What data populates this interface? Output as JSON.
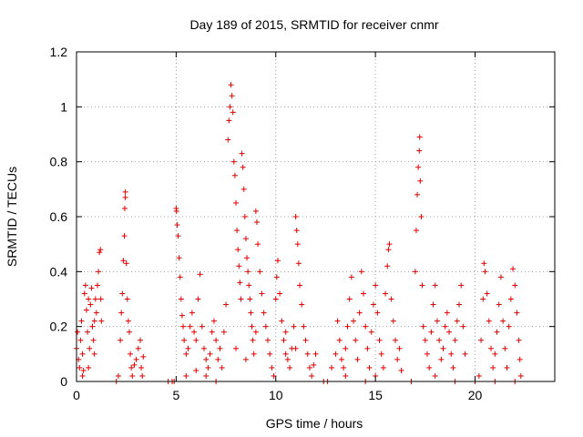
{
  "chart_data": {
    "type": "scatter",
    "title": "Day 189 of 2015, SRMTID for receiver cnmr",
    "xlabel": "GPS time / hours",
    "ylabel": "SRMTID / TECUs",
    "xlim": [
      0,
      24
    ],
    "ylim": [
      0,
      1.2
    ],
    "x_ticks": [
      0,
      5,
      10,
      15,
      20
    ],
    "x_tick_labels": [
      "0",
      "5",
      "10",
      "15",
      "20"
    ],
    "y_ticks": [
      0,
      0.2,
      0.4,
      0.6,
      0.8,
      1.0,
      1.2
    ],
    "y_tick_labels": [
      "0",
      "0.2",
      "0.4",
      "0.6",
      "0.8",
      "1",
      "1.2"
    ],
    "grid": true,
    "marker": "+",
    "color": "#e00000",
    "series": [
      {
        "name": "cnmr",
        "points": [
          [
            0.0,
            0.12
          ],
          [
            0.05,
            0.18
          ],
          [
            0.1,
            0.08
          ],
          [
            0.15,
            0.05
          ],
          [
            0.2,
            0.15
          ],
          [
            0.25,
            0.22
          ],
          [
            0.3,
            0.1
          ],
          [
            0.35,
            0.04
          ],
          [
            0.4,
            0.32
          ],
          [
            0.45,
            0.35
          ],
          [
            0.5,
            0.26
          ],
          [
            0.55,
            0.18
          ],
          [
            0.6,
            0.05
          ],
          [
            0.65,
            0.12
          ],
          [
            0.7,
            0.28
          ],
          [
            0.75,
            0.34
          ],
          [
            0.8,
            0.2
          ],
          [
            0.85,
            0.15
          ],
          [
            0.9,
            0.22
          ],
          [
            0.95,
            0.3
          ],
          [
            1.0,
            0.25
          ],
          [
            1.05,
            0.35
          ],
          [
            1.1,
            0.4
          ],
          [
            1.15,
            0.47
          ],
          [
            1.2,
            0.48
          ],
          [
            1.22,
            0.3
          ],
          [
            1.25,
            0.22
          ],
          [
            0.3,
            0.02
          ],
          [
            0.6,
            0.3
          ],
          [
            0.9,
            0.1
          ],
          [
            2.0,
            0.0
          ],
          [
            2.1,
            0.02
          ],
          [
            2.2,
            0.15
          ],
          [
            2.25,
            0.25
          ],
          [
            2.3,
            0.32
          ],
          [
            2.35,
            0.44
          ],
          [
            2.4,
            0.53
          ],
          [
            2.42,
            0.63
          ],
          [
            2.45,
            0.67
          ],
          [
            2.45,
            0.69
          ],
          [
            2.5,
            0.43
          ],
          [
            2.55,
            0.3
          ],
          [
            2.6,
            0.22
          ],
          [
            2.65,
            0.18
          ],
          [
            2.7,
            0.1
          ],
          [
            2.75,
            0.05
          ],
          [
            2.8,
            0.02
          ],
          [
            2.9,
            0.06
          ],
          [
            3.0,
            0.08
          ],
          [
            3.1,
            0.12
          ],
          [
            3.2,
            0.15
          ],
          [
            3.25,
            0.05
          ],
          [
            3.3,
            0.02
          ],
          [
            3.35,
            0.09
          ],
          [
            4.6,
            0.0
          ],
          [
            4.8,
            0.0
          ],
          [
            4.9,
            0.0
          ],
          [
            5.0,
            0.63
          ],
          [
            5.02,
            0.62
          ],
          [
            5.05,
            0.57
          ],
          [
            5.1,
            0.53
          ],
          [
            5.15,
            0.45
          ],
          [
            5.2,
            0.38
          ],
          [
            5.25,
            0.3
          ],
          [
            5.3,
            0.24
          ],
          [
            5.35,
            0.2
          ],
          [
            5.4,
            0.15
          ],
          [
            5.5,
            0.1
          ],
          [
            5.6,
            0.12
          ],
          [
            5.7,
            0.2
          ],
          [
            5.8,
            0.25
          ],
          [
            5.9,
            0.18
          ],
          [
            6.0,
            0.15
          ],
          [
            6.1,
            0.3
          ],
          [
            6.2,
            0.39
          ],
          [
            6.3,
            0.2
          ],
          [
            6.4,
            0.12
          ],
          [
            6.5,
            0.08
          ],
          [
            6.6,
            0.05
          ],
          [
            6.7,
            0.1
          ],
          [
            6.8,
            0.18
          ],
          [
            6.9,
            0.22
          ],
          [
            7.0,
            0.15
          ],
          [
            7.1,
            0.08
          ],
          [
            7.2,
            0.12
          ],
          [
            7.3,
            0.05
          ],
          [
            7.4,
            0.18
          ],
          [
            7.5,
            0.28
          ],
          [
            5.5,
            0.02
          ],
          [
            6.0,
            0.04
          ],
          [
            6.5,
            0.02
          ],
          [
            7.0,
            0.0
          ],
          [
            7.6,
            0.88
          ],
          [
            7.65,
            0.95
          ],
          [
            7.7,
            1.0
          ],
          [
            7.75,
            1.08
          ],
          [
            7.8,
            1.04
          ],
          [
            7.85,
            0.98
          ],
          [
            7.9,
            0.8
          ],
          [
            7.95,
            0.75
          ],
          [
            8.0,
            0.65
          ],
          [
            8.05,
            0.55
          ],
          [
            8.1,
            0.48
          ],
          [
            8.15,
            0.42
          ],
          [
            8.2,
            0.36
          ],
          [
            8.25,
            0.3
          ],
          [
            8.3,
            0.83
          ],
          [
            8.35,
            0.78
          ],
          [
            8.4,
            0.7
          ],
          [
            8.45,
            0.6
          ],
          [
            8.5,
            0.52
          ],
          [
            8.55,
            0.45
          ],
          [
            8.6,
            0.4
          ],
          [
            8.65,
            0.35
          ],
          [
            8.7,
            0.3
          ],
          [
            8.75,
            0.25
          ],
          [
            8.8,
            0.2
          ],
          [
            8.85,
            0.15
          ],
          [
            8.9,
            0.1
          ],
          [
            9.0,
            0.62
          ],
          [
            9.05,
            0.58
          ],
          [
            9.1,
            0.5
          ],
          [
            9.2,
            0.4
          ],
          [
            9.3,
            0.32
          ],
          [
            9.4,
            0.25
          ],
          [
            9.5,
            0.2
          ],
          [
            9.6,
            0.15
          ],
          [
            9.7,
            0.1
          ],
          [
            9.8,
            0.05
          ],
          [
            9.9,
            0.02
          ],
          [
            8.0,
            0.12
          ],
          [
            8.5,
            0.08
          ],
          [
            9.0,
            0.18
          ],
          [
            10.0,
            0.3
          ],
          [
            10.05,
            0.38
          ],
          [
            10.1,
            0.44
          ],
          [
            10.2,
            0.32
          ],
          [
            10.3,
            0.22
          ],
          [
            10.4,
            0.15
          ],
          [
            10.5,
            0.1
          ],
          [
            10.6,
            0.08
          ],
          [
            10.7,
            0.05
          ],
          [
            10.8,
            0.12
          ],
          [
            10.9,
            0.2
          ],
          [
            11.0,
            0.6
          ],
          [
            11.05,
            0.55
          ],
          [
            11.1,
            0.5
          ],
          [
            11.15,
            0.43
          ],
          [
            11.2,
            0.35
          ],
          [
            11.3,
            0.28
          ],
          [
            11.4,
            0.2
          ],
          [
            11.5,
            0.15
          ],
          [
            11.6,
            0.1
          ],
          [
            11.7,
            0.05
          ],
          [
            11.8,
            0.02
          ],
          [
            11.9,
            0.06
          ],
          [
            12.0,
            0.1
          ],
          [
            10.5,
            0.18
          ],
          [
            11.0,
            0.12
          ],
          [
            12.4,
            0.0
          ],
          [
            12.6,
            0.0
          ],
          [
            12.8,
            0.05
          ],
          [
            13.0,
            0.1
          ],
          [
            13.1,
            0.22
          ],
          [
            13.2,
            0.15
          ],
          [
            13.3,
            0.08
          ],
          [
            13.4,
            0.05
          ],
          [
            13.5,
            0.12
          ],
          [
            13.6,
            0.2
          ],
          [
            13.7,
            0.3
          ],
          [
            13.8,
            0.38
          ],
          [
            13.9,
            0.22
          ],
          [
            14.0,
            0.15
          ],
          [
            14.1,
            0.08
          ],
          [
            14.2,
            0.25
          ],
          [
            14.3,
            0.4
          ],
          [
            14.4,
            0.32
          ],
          [
            14.5,
            0.2
          ],
          [
            14.6,
            0.12
          ],
          [
            14.7,
            0.05
          ],
          [
            14.8,
            0.18
          ],
          [
            14.9,
            0.28
          ],
          [
            15.0,
            0.35
          ],
          [
            15.1,
            0.25
          ],
          [
            15.2,
            0.15
          ],
          [
            15.3,
            0.1
          ],
          [
            15.4,
            0.05
          ],
          [
            15.5,
            0.32
          ],
          [
            15.6,
            0.42
          ],
          [
            15.65,
            0.48
          ],
          [
            15.7,
            0.5
          ],
          [
            15.8,
            0.3
          ],
          [
            15.9,
            0.22
          ],
          [
            16.0,
            0.15
          ],
          [
            16.1,
            0.08
          ],
          [
            16.2,
            0.12
          ],
          [
            16.3,
            0.04
          ],
          [
            13.5,
            0.02
          ],
          [
            14.5,
            0.0
          ],
          [
            15.0,
            0.02
          ],
          [
            16.8,
            0.0
          ],
          [
            17.0,
            0.4
          ],
          [
            17.05,
            0.55
          ],
          [
            17.1,
            0.68
          ],
          [
            17.15,
            0.78
          ],
          [
            17.2,
            0.84
          ],
          [
            17.22,
            0.89
          ],
          [
            17.25,
            0.73
          ],
          [
            17.3,
            0.6
          ],
          [
            17.35,
            0.35
          ],
          [
            17.4,
            0.2
          ],
          [
            17.5,
            0.15
          ],
          [
            17.6,
            0.1
          ],
          [
            17.7,
            0.05
          ],
          [
            17.8,
            0.18
          ],
          [
            17.9,
            0.28
          ],
          [
            18.0,
            0.35
          ],
          [
            18.1,
            0.22
          ],
          [
            18.2,
            0.15
          ],
          [
            18.3,
            0.08
          ],
          [
            18.4,
            0.12
          ],
          [
            18.5,
            0.2
          ],
          [
            18.6,
            0.25
          ],
          [
            18.7,
            0.18
          ],
          [
            18.8,
            0.1
          ],
          [
            18.9,
            0.05
          ],
          [
            19.0,
            0.15
          ],
          [
            19.1,
            0.22
          ],
          [
            19.2,
            0.28
          ],
          [
            19.3,
            0.35
          ],
          [
            19.4,
            0.2
          ],
          [
            19.5,
            0.1
          ],
          [
            18.0,
            0.02
          ],
          [
            19.0,
            0.0
          ],
          [
            20.0,
            0.0
          ],
          [
            20.2,
            0.02
          ],
          [
            20.3,
            0.15
          ],
          [
            20.4,
            0.3
          ],
          [
            20.45,
            0.43
          ],
          [
            20.5,
            0.4
          ],
          [
            20.6,
            0.32
          ],
          [
            20.7,
            0.22
          ],
          [
            20.8,
            0.12
          ],
          [
            20.9,
            0.05
          ],
          [
            21.0,
            0.1
          ],
          [
            21.1,
            0.18
          ],
          [
            21.2,
            0.28
          ],
          [
            21.3,
            0.38
          ],
          [
            21.4,
            0.22
          ],
          [
            21.5,
            0.12
          ],
          [
            21.6,
            0.05
          ],
          [
            21.7,
            0.2
          ],
          [
            21.8,
            0.3
          ],
          [
            21.9,
            0.41
          ],
          [
            22.0,
            0.35
          ],
          [
            22.1,
            0.25
          ],
          [
            22.2,
            0.15
          ],
          [
            22.25,
            0.08
          ],
          [
            22.3,
            0.02
          ],
          [
            21.0,
            0.0
          ],
          [
            22.0,
            0.0
          ]
        ]
      }
    ]
  }
}
